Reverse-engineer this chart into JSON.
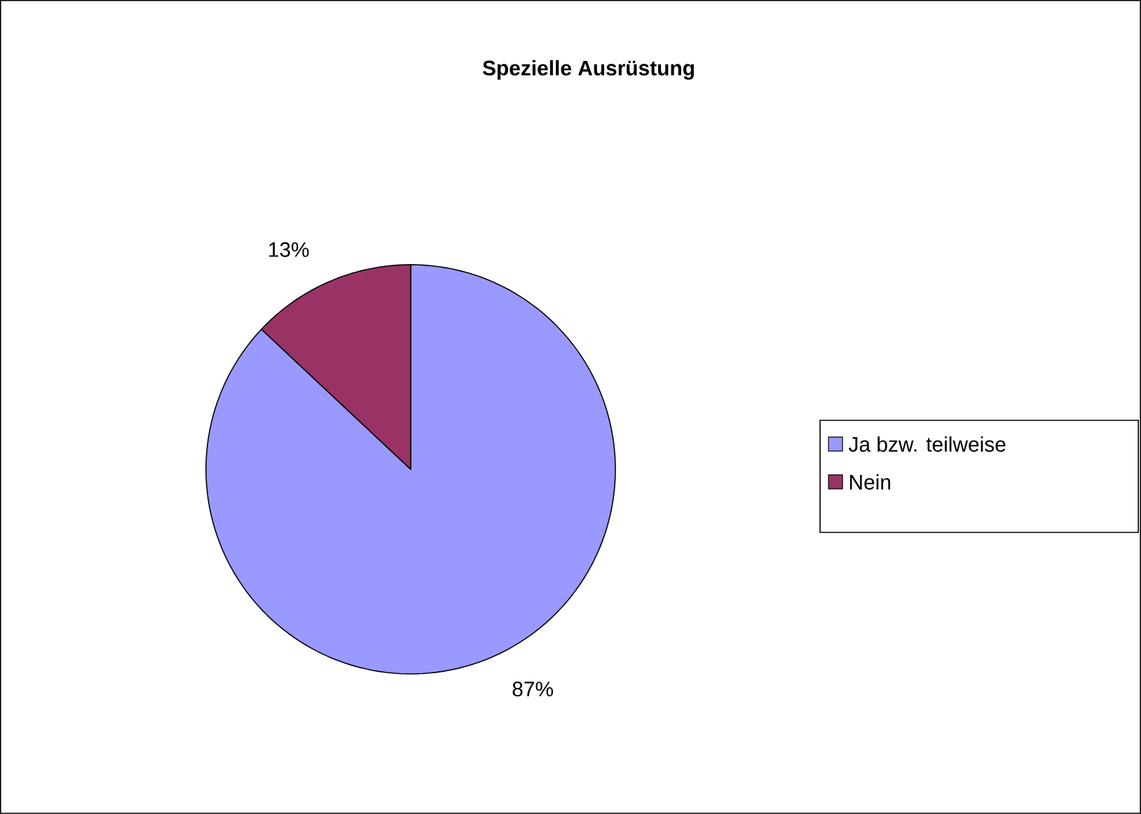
{
  "chart_data": {
    "type": "pie",
    "title": "Spezielle Ausrüstung",
    "categories": [
      "Ja bzw. teilweise",
      "Nein"
    ],
    "values": [
      87,
      13
    ],
    "colors": [
      "#9999ff",
      "#993366"
    ],
    "value_labels": [
      "87%",
      "13%"
    ],
    "legend": "right"
  }
}
